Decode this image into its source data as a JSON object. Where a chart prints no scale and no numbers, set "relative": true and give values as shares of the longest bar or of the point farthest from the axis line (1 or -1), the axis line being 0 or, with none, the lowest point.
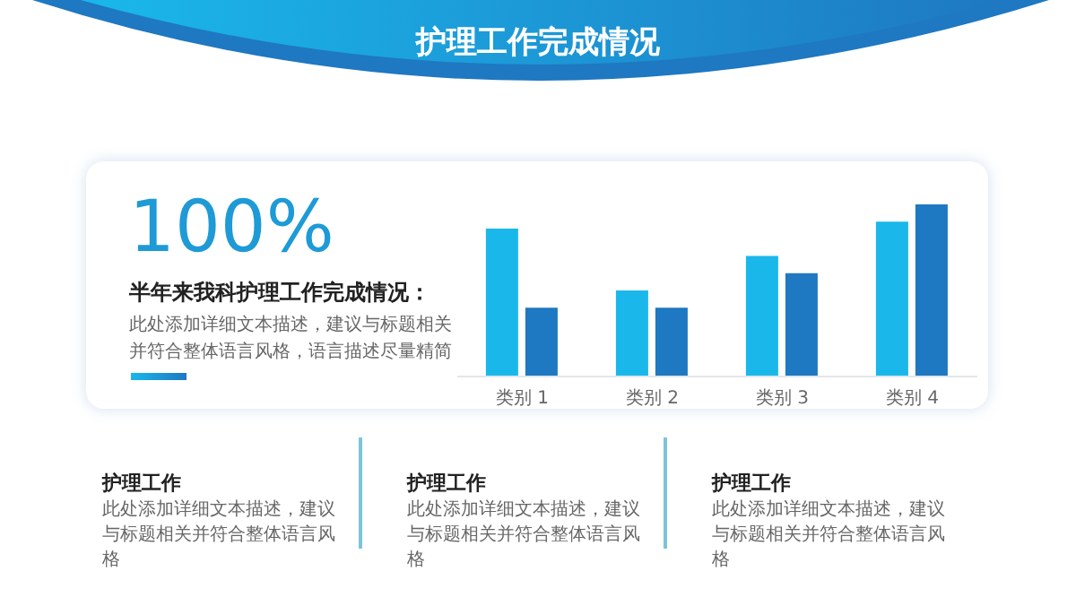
{
  "chart_data": {
    "type": "bar",
    "title": "护理工作完成情况",
    "categories": [
      "类别 1",
      "类别 2",
      "类别 3",
      "类别 4"
    ],
    "series": [
      {
        "color": "#1ab8ea",
        "values": [
          0.86,
          0.5,
          0.7,
          0.9
        ]
      },
      {
        "color": "#1e78c2",
        "values": [
          0.4,
          0.4,
          0.6,
          1
        ]
      }
    ],
    "relative": true,
    "grid": false,
    "legend": false,
    "annotations": [
      "100%",
      "半年来我科护理工作完成情况：",
      "此处添加详细文本描述，建议与标题相关并符合整体语言风格，语言描述尽量精简",
      "护理工作",
      "此处添加详细文本描述，建议与标题相关并符合整体语言风格",
      "护理工作",
      "此处添加详细文本描述，建议与标题相关并符合整体语言风格",
      "护理工作",
      "此处添加详细文本描述，建议与标题相关并符合整体语言风格"
    ]
  }
}
